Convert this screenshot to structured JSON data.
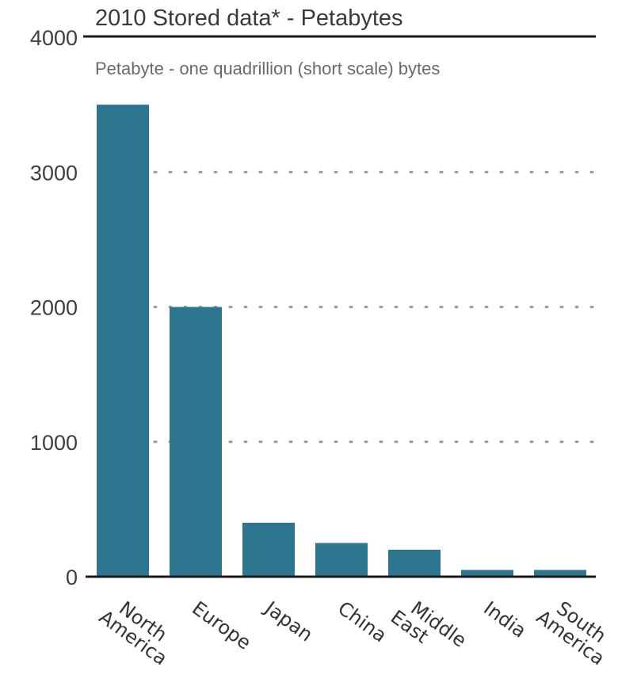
{
  "chart_data": {
    "type": "bar",
    "title": "2010 Stored data* - Petabytes",
    "subtitle": "Petabyte - one quadrillion (short scale) bytes",
    "categories": [
      [
        "North",
        "America"
      ],
      [
        "Europe"
      ],
      [
        "Japan"
      ],
      [
        "China"
      ],
      [
        "Middle",
        "East"
      ],
      [
        "India"
      ],
      [
        "South",
        "America"
      ]
    ],
    "values": [
      3500,
      2000,
      400,
      250,
      200,
      50,
      50
    ],
    "ylim": [
      0,
      4000
    ],
    "yticks": [
      "0",
      "1000",
      "2000",
      "3000",
      "4000"
    ],
    "grid": true,
    "bar_color": "#2e7590"
  }
}
